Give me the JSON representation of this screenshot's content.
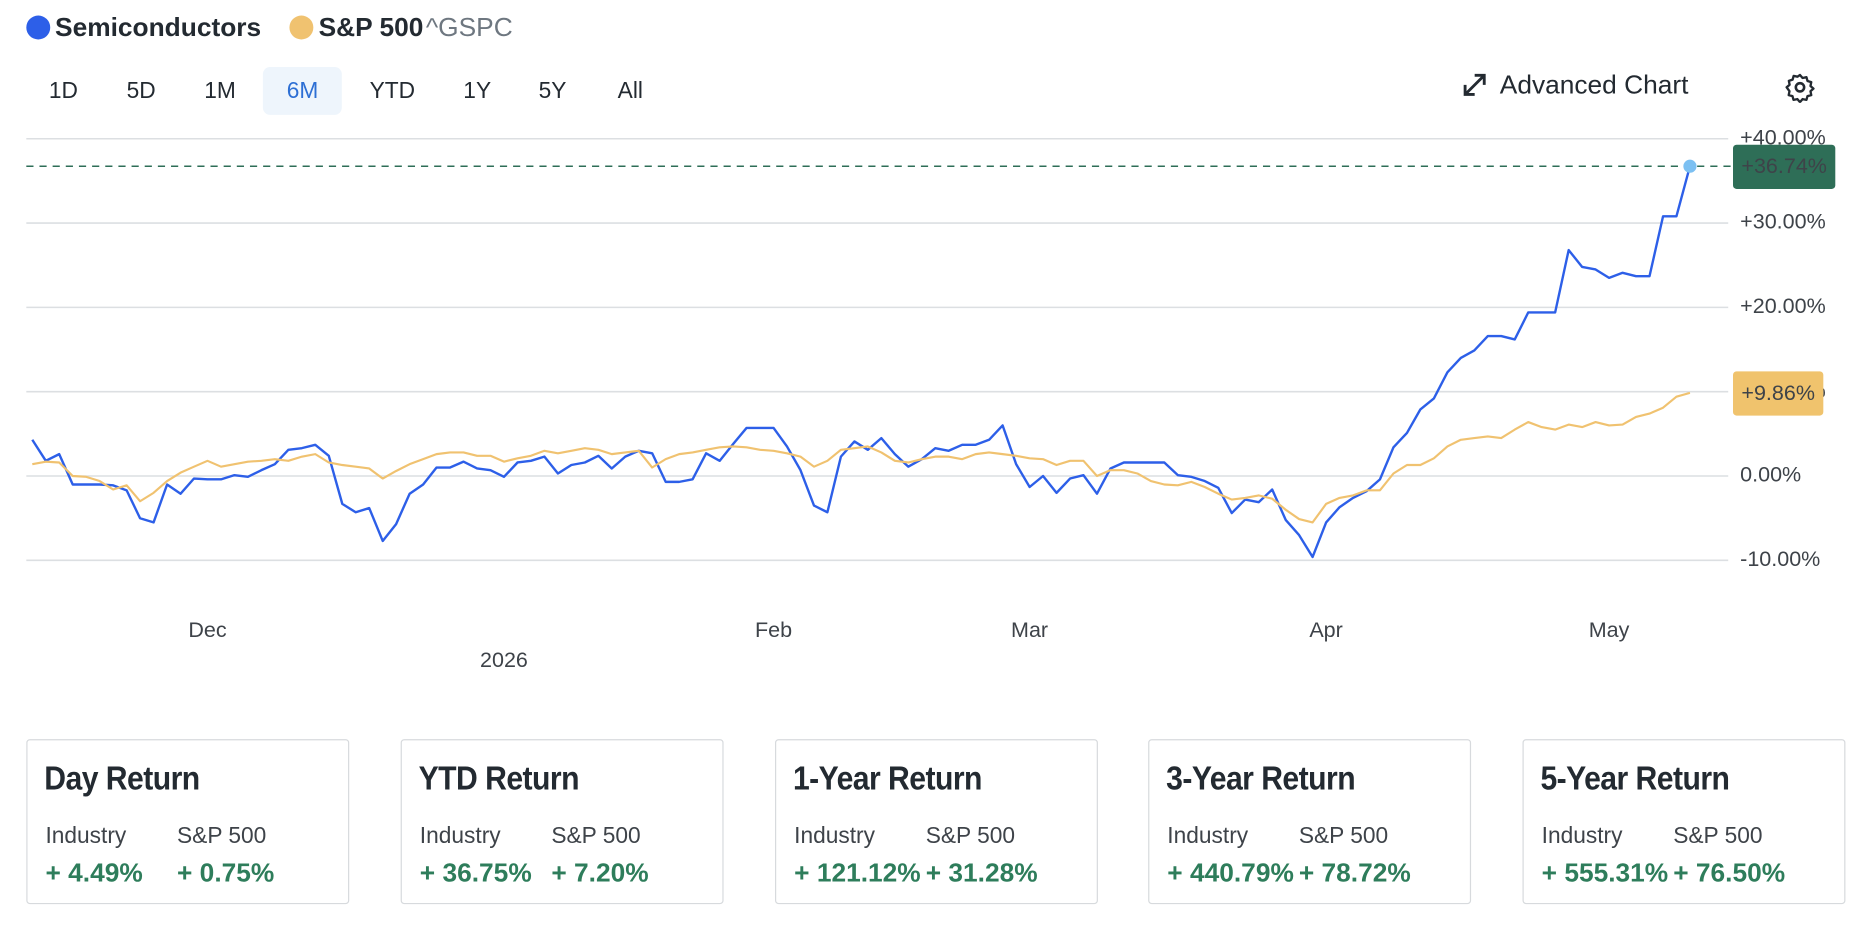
{
  "legend_symbol": "^GSPC",
  "range_tabs": [
    "1D",
    "5D",
    "1M",
    "6M",
    "YTD",
    "1Y",
    "5Y",
    "All"
  ],
  "selected_range": "6M",
  "advanced_chart": "Advanced Chart",
  "chart_data": {
    "type": "line",
    "categories": [
      null,
      null,
      null,
      null,
      null,
      null,
      null,
      null,
      null,
      null,
      null,
      null,
      null,
      "Dec",
      null,
      null,
      null,
      null,
      null,
      null,
      null,
      null,
      null,
      null,
      null,
      null,
      null,
      null,
      null,
      null,
      null,
      null,
      null,
      null,
      null,
      "2026",
      null,
      null,
      null,
      null,
      null,
      null,
      null,
      null,
      null,
      null,
      null,
      null,
      null,
      null,
      null,
      null,
      null,
      null,
      null,
      "Feb",
      null,
      null,
      null,
      null,
      null,
      null,
      null,
      null,
      null,
      null,
      null,
      null,
      null,
      null,
      null,
      null,
      null,
      null,
      "Mar",
      null,
      null,
      null,
      null,
      null,
      null,
      null,
      null,
      null,
      null,
      null,
      null,
      null,
      null,
      null,
      null,
      null,
      null,
      null,
      null,
      null,
      "Apr",
      null,
      null,
      null,
      null,
      null,
      null,
      null,
      null,
      null,
      null,
      null,
      null,
      null,
      null,
      null,
      null,
      null,
      null,
      null,
      null,
      "May",
      null,
      null,
      null,
      null,
      null,
      null
    ],
    "series": [
      {
        "name": "Semiconductors",
        "color": "#2d5fe8",
        "last_label": "+36.74%",
        "label_color": "#2e6e57",
        "label_text_color": "#ffffff",
        "values": [
          4.3,
          1.8,
          2.6,
          -1.0,
          -1.0,
          -1.0,
          -1.1,
          -1.7,
          -5.0,
          -5.5,
          -1.0,
          -2.1,
          -0.3,
          -0.4,
          -0.4,
          0.1,
          -0.1,
          0.7,
          1.4,
          3.1,
          3.3,
          3.7,
          2.4,
          -3.3,
          -4.3,
          -3.8,
          -7.7,
          -5.7,
          -2.1,
          -1.0,
          1.0,
          1.0,
          1.7,
          0.9,
          0.7,
          -0.1,
          1.6,
          1.8,
          2.3,
          0.3,
          1.3,
          1.6,
          2.4,
          0.9,
          2.3,
          3.0,
          2.7,
          -0.7,
          -0.7,
          -0.4,
          2.7,
          1.8,
          3.8,
          5.7,
          5.7,
          5.7,
          3.5,
          0.7,
          -3.5,
          -4.3,
          2.3,
          4.1,
          3.1,
          4.5,
          2.6,
          1.1,
          2.0,
          3.3,
          3.0,
          3.7,
          3.7,
          4.3,
          6.0,
          1.4,
          -1.3,
          0.0,
          -2.0,
          -0.3,
          0.1,
          -2.1,
          0.9,
          1.6,
          1.6,
          1.6,
          1.6,
          0.1,
          -0.1,
          -0.6,
          -1.4,
          -4.4,
          -2.8,
          -3.1,
          -1.6,
          -5.2,
          -7.0,
          -9.6,
          -5.5,
          -3.7,
          -2.6,
          -1.8,
          -0.4,
          3.4,
          5.1,
          7.9,
          9.2,
          12.3,
          14.0,
          14.9,
          16.6,
          16.6,
          16.2,
          19.4,
          19.4,
          19.4,
          26.8,
          24.8,
          24.5,
          23.5,
          24.1,
          23.7,
          23.7,
          30.8,
          30.8,
          36.74
        ]
      },
      {
        "name": "S&P 500",
        "color": "#f0c270",
        "last_label": "+9.86%",
        "label_color": "#f0c36d",
        "label_text_color": "#1a1a1a",
        "values": [
          1.4,
          1.7,
          1.6,
          0.0,
          -0.1,
          -0.6,
          -1.6,
          -1.1,
          -3.0,
          -2.0,
          -0.6,
          0.4,
          1.1,
          1.8,
          1.1,
          1.4,
          1.7,
          1.8,
          2.0,
          1.8,
          2.3,
          2.6,
          1.6,
          1.3,
          1.1,
          0.9,
          -0.3,
          0.6,
          1.4,
          2.0,
          2.6,
          2.8,
          2.8,
          2.4,
          2.4,
          1.7,
          2.1,
          2.4,
          3.0,
          2.7,
          3.0,
          3.3,
          3.1,
          2.6,
          2.8,
          3.0,
          1.0,
          2.0,
          2.6,
          2.8,
          3.1,
          3.4,
          3.5,
          3.4,
          3.1,
          3.0,
          2.7,
          2.3,
          1.1,
          1.8,
          3.1,
          3.3,
          3.5,
          2.8,
          1.8,
          1.6,
          2.0,
          2.3,
          2.3,
          2.0,
          2.6,
          2.8,
          2.6,
          2.4,
          2.1,
          2.0,
          1.3,
          1.8,
          1.8,
          0.0,
          0.7,
          0.7,
          0.3,
          -0.6,
          -1.0,
          -1.1,
          -0.7,
          -1.3,
          -2.1,
          -2.8,
          -2.6,
          -2.3,
          -2.7,
          -4.0,
          -5.1,
          -5.5,
          -3.3,
          -2.6,
          -2.3,
          -1.7,
          -1.7,
          0.3,
          1.3,
          1.3,
          2.1,
          3.5,
          4.3,
          4.5,
          4.7,
          4.5,
          5.5,
          6.4,
          5.8,
          5.5,
          6.1,
          5.8,
          6.4,
          6.0,
          6.1,
          7.0,
          7.4,
          8.1,
          9.4,
          9.86
        ]
      }
    ],
    "ylim": [
      -10,
      40
    ],
    "yticks": [
      {
        "value": -10,
        "label": "-10.00%"
      },
      {
        "value": 0,
        "label": "0.00%"
      },
      {
        "value": 10,
        "label": "+10.00%"
      },
      {
        "value": 20,
        "label": "+20.00%"
      },
      {
        "value": 30,
        "label": "+30.00%"
      },
      {
        "value": 40,
        "label": "+40.00%"
      }
    ],
    "grid": true
  },
  "returns": [
    {
      "title": "Day Return",
      "columns": [
        "Industry",
        "S&P 500"
      ],
      "values": [
        "+ 4.49%",
        "+ 0.75%"
      ]
    },
    {
      "title": "YTD Return",
      "columns": [
        "Industry",
        "S&P 500"
      ],
      "values": [
        "+ 36.75%",
        "+ 7.20%"
      ]
    },
    {
      "title": "1-Year Return",
      "columns": [
        "Industry",
        "S&P 500"
      ],
      "values": [
        "+ 121.12%",
        "+ 31.28%"
      ]
    },
    {
      "title": "3-Year Return",
      "columns": [
        "Industry",
        "S&P 500"
      ],
      "values": [
        "+ 440.79%",
        "+ 78.72%"
      ]
    },
    {
      "title": "5-Year Return",
      "columns": [
        "Industry",
        "S&P 500"
      ],
      "values": [
        "+ 555.31%",
        "+ 76.50%"
      ]
    }
  ]
}
